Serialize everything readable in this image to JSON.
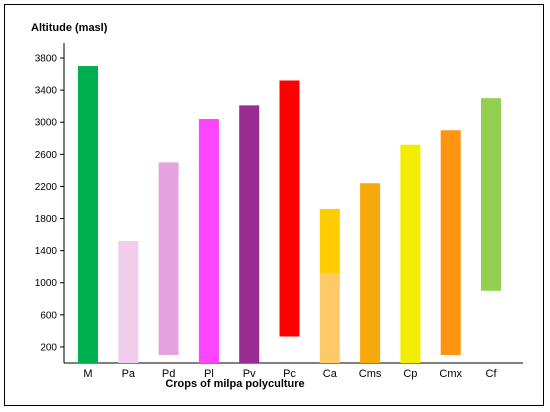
{
  "chart_data": {
    "type": "bar",
    "subtype": "floating-range",
    "ylabel": "Altitude (masl)",
    "xlabel": "Crops of milpa polyculture",
    "yticks": [
      200,
      600,
      1000,
      1400,
      1800,
      2200,
      2600,
      3000,
      3400,
      3800
    ],
    "ylim": [
      0,
      3900
    ],
    "grid": false,
    "categories": [
      "M",
      "Pa",
      "Pd",
      "Pl",
      "Pv",
      "Pc",
      "Ca",
      "Cms",
      "Cp",
      "Cmx",
      "Cf"
    ],
    "ranges": [
      {
        "category": "M",
        "low": 0,
        "high": 3700,
        "color": "#00b050"
      },
      {
        "category": "Pa",
        "low": 0,
        "high": 1520,
        "color": "#f2cdeb"
      },
      {
        "category": "Pd",
        "low": 100,
        "high": 2500,
        "color": "#e4a2de"
      },
      {
        "category": "Pl",
        "low": 0,
        "high": 3040,
        "color": "#ff44ff"
      },
      {
        "category": "Pv",
        "low": 0,
        "high": 3210,
        "color": "#9a2b93"
      },
      {
        "category": "Pc",
        "low": 330,
        "high": 3520,
        "color": "#ff0000"
      },
      {
        "category": "Ca",
        "low": 0,
        "high": 1920,
        "color": "#ffcc00",
        "segments": [
          {
            "low": 0,
            "high": 1120,
            "color": "#ffc966"
          },
          {
            "low": 1120,
            "high": 1920,
            "color": "#ffcc00"
          }
        ]
      },
      {
        "category": "Cms",
        "low": 0,
        "high": 2240,
        "color": "#f7a90c"
      },
      {
        "category": "Cp",
        "low": 0,
        "high": 2720,
        "color": "#f2ec00"
      },
      {
        "category": "Cmx",
        "low": 100,
        "high": 2900,
        "color": "#ff9410"
      },
      {
        "category": "Cf",
        "low": 900,
        "high": 3300,
        "color": "#92d050"
      }
    ]
  }
}
